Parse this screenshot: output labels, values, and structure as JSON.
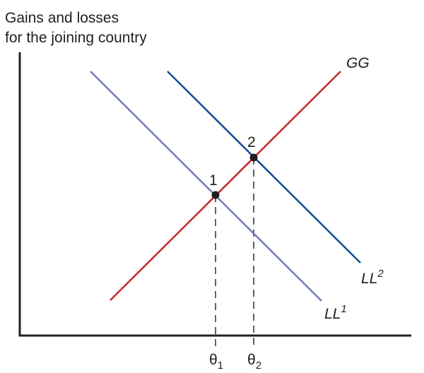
{
  "y_axis_label": {
    "line1": "Gains and losses",
    "line2": "for the joining country"
  },
  "curves": [
    {
      "id": "GG",
      "label": "GG",
      "sup": "",
      "color": "#c1272d"
    },
    {
      "id": "LL1",
      "label": "LL",
      "sup": "1",
      "color": "#6f7fb8"
    },
    {
      "id": "LL2",
      "label": "LL",
      "sup": "2",
      "color": "#0f4c94"
    }
  ],
  "points": [
    {
      "id": "p1",
      "label": "1",
      "on": [
        "GG",
        "LL1"
      ]
    },
    {
      "id": "p2",
      "label": "2",
      "on": [
        "GG",
        "LL2"
      ]
    }
  ],
  "x_ticks": [
    {
      "symbol": "θ",
      "sub": "1"
    },
    {
      "symbol": "θ",
      "sub": "2"
    }
  ],
  "colors": {
    "axis": "#231f20",
    "point": "#231f20",
    "dashed_guides": "#231f20"
  }
}
